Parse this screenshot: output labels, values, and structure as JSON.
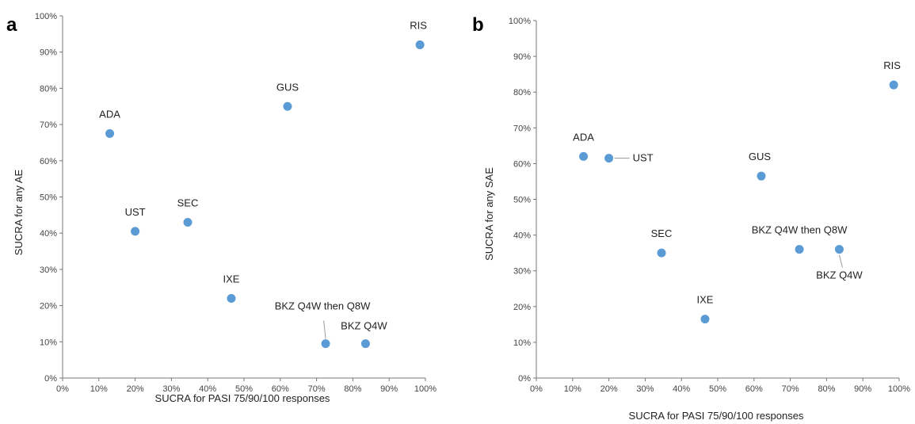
{
  "chart_data": [
    {
      "type": "scatter",
      "panel_label": "a",
      "xlabel": "SUCRA for PASI 75/90/100 responses",
      "ylabel": "SUCRA for any AE",
      "xlim": [
        0,
        100
      ],
      "ylim": [
        0,
        100
      ],
      "x_ticks": [
        "0%",
        "10%",
        "20%",
        "30%",
        "40%",
        "50%",
        "60%",
        "70%",
        "80%",
        "90%",
        "100%"
      ],
      "y_ticks": [
        "0%",
        "10%",
        "20%",
        "30%",
        "40%",
        "50%",
        "60%",
        "70%",
        "80%",
        "90%",
        "100%"
      ],
      "grid": false,
      "marker_color": "#5b9bd5",
      "points": [
        {
          "label": "ADA",
          "x": 13,
          "y": 67.5
        },
        {
          "label": "UST",
          "x": 20,
          "y": 40.5
        },
        {
          "label": "SEC",
          "x": 34.5,
          "y": 43
        },
        {
          "label": "IXE",
          "x": 46.5,
          "y": 22
        },
        {
          "label": "GUS",
          "x": 62,
          "y": 75
        },
        {
          "label": "BKZ Q4W then Q8W",
          "x": 72.5,
          "y": 9.5
        },
        {
          "label": "BKZ Q4W",
          "x": 83.5,
          "y": 9.5
        },
        {
          "label": "RIS",
          "x": 98.5,
          "y": 92
        }
      ]
    },
    {
      "type": "scatter",
      "panel_label": "b",
      "xlabel": "SUCRA for PASI 75/90/100 responses",
      "ylabel": "SUCRA for any SAE",
      "xlim": [
        0,
        100
      ],
      "ylim": [
        0,
        100
      ],
      "x_ticks": [
        "0%",
        "10%",
        "20%",
        "30%",
        "40%",
        "50%",
        "60%",
        "70%",
        "80%",
        "90%",
        "100%"
      ],
      "y_ticks": [
        "0%",
        "10%",
        "20%",
        "30%",
        "40%",
        "50%",
        "60%",
        "70%",
        "80%",
        "90%",
        "100%"
      ],
      "grid": false,
      "marker_color": "#5b9bd5",
      "points": [
        {
          "label": "ADA",
          "x": 13,
          "y": 62
        },
        {
          "label": "UST",
          "x": 20,
          "y": 61.5
        },
        {
          "label": "SEC",
          "x": 34.5,
          "y": 35
        },
        {
          "label": "IXE",
          "x": 46.5,
          "y": 16.5
        },
        {
          "label": "GUS",
          "x": 62,
          "y": 56.5
        },
        {
          "label": "BKZ Q4W then Q8W",
          "x": 72.5,
          "y": 36
        },
        {
          "label": "BKZ Q4W",
          "x": 83.5,
          "y": 36
        },
        {
          "label": "RIS",
          "x": 98.5,
          "y": 82
        }
      ]
    }
  ]
}
